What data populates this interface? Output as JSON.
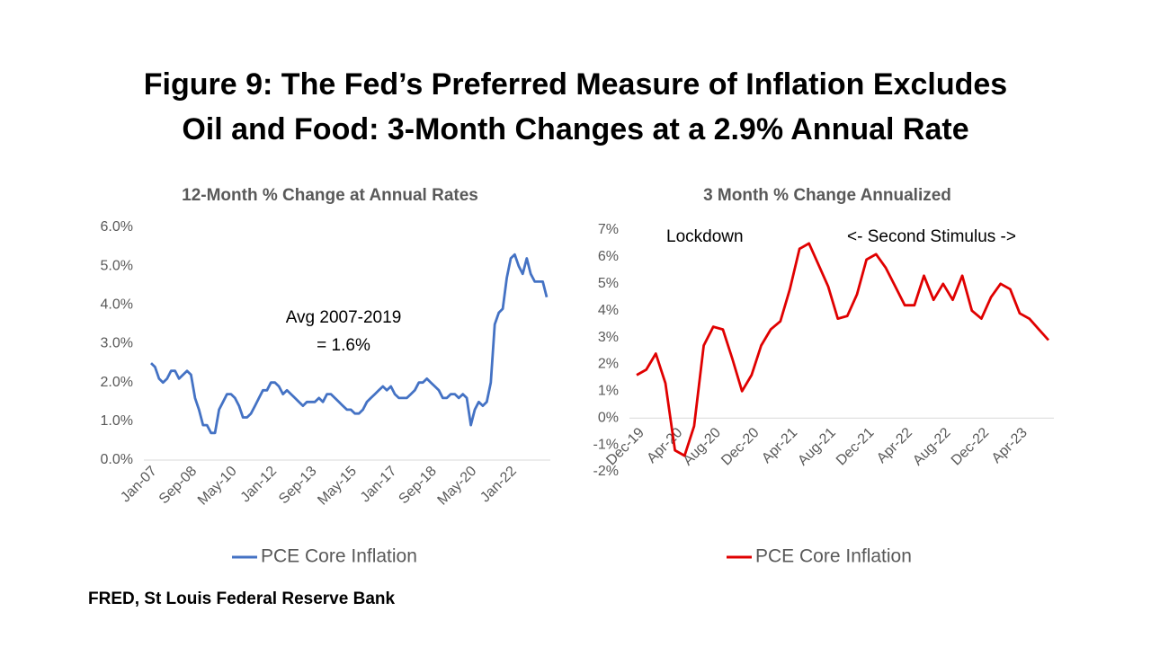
{
  "title": [
    "Figure 9: The Fed’s Preferred Measure of Inflation Excludes",
    "Oil and Food: 3-Month Changes at a 2.9% Annual Rate"
  ],
  "source": "FRED, St Louis  Federal Reserve Bank",
  "chart_data": [
    {
      "type": "line",
      "title": "12-Month % Change at Annual Rates",
      "categories": [
        "Jan-07",
        null,
        null,
        null,
        null,
        null,
        null,
        null,
        null,
        null,
        "Sep-08",
        null,
        null,
        null,
        null,
        null,
        null,
        null,
        null,
        null,
        "May-10",
        null,
        null,
        null,
        null,
        null,
        null,
        null,
        null,
        null,
        "Jan-12",
        null,
        null,
        null,
        null,
        null,
        null,
        null,
        null,
        null,
        "Sep-13",
        null,
        null,
        null,
        null,
        null,
        null,
        null,
        null,
        null,
        "May-15",
        null,
        null,
        null,
        null,
        null,
        null,
        null,
        null,
        null,
        "Jan-17",
        null,
        null,
        null,
        null,
        null,
        null,
        null,
        null,
        null,
        "Sep-18",
        null,
        null,
        null,
        null,
        null,
        null,
        null,
        null,
        null,
        "May-20",
        null,
        null,
        null,
        null,
        null,
        null,
        null,
        null,
        null,
        "Jan-22",
        null,
        null,
        null,
        null,
        null,
        null,
        null,
        null,
        null
      ],
      "series": [
        {
          "name": "PCE Core Inflation",
          "color": "#4472c4",
          "values": [
            2.5,
            2.4,
            2.1,
            2.0,
            2.1,
            2.3,
            2.3,
            2.1,
            2.2,
            2.3,
            2.2,
            1.6,
            1.3,
            0.9,
            0.9,
            0.7,
            0.7,
            1.3,
            1.5,
            1.7,
            1.7,
            1.6,
            1.4,
            1.1,
            1.1,
            1.2,
            1.4,
            1.6,
            1.8,
            1.8,
            2.0,
            2.0,
            1.9,
            1.7,
            1.8,
            1.7,
            1.6,
            1.5,
            1.4,
            1.5,
            1.5,
            1.5,
            1.6,
            1.5,
            1.7,
            1.7,
            1.6,
            1.5,
            1.4,
            1.3,
            1.3,
            1.2,
            1.2,
            1.3,
            1.5,
            1.6,
            1.7,
            1.8,
            1.9,
            1.8,
            1.9,
            1.7,
            1.6,
            1.6,
            1.6,
            1.7,
            1.8,
            2.0,
            2.0,
            2.1,
            2.0,
            1.9,
            1.8,
            1.6,
            1.6,
            1.7,
            1.7,
            1.6,
            1.7,
            1.6,
            0.9,
            1.3,
            1.5,
            1.4,
            1.5,
            2.0,
            3.5,
            3.8,
            3.9,
            4.7,
            5.2,
            5.3,
            5.0,
            4.8,
            5.2,
            4.8,
            4.6,
            4.6,
            4.6,
            4.2
          ]
        }
      ],
      "ylim": [
        0,
        6
      ],
      "yticks": [
        {
          "value": 0,
          "label": "0.0%"
        },
        {
          "value": 1,
          "label": "1.0%"
        },
        {
          "value": 2,
          "label": "2.0%"
        },
        {
          "value": 3,
          "label": "3.0%"
        },
        {
          "value": 4,
          "label": "4.0%"
        },
        {
          "value": 5,
          "label": "5.0%"
        },
        {
          "value": 6,
          "label": "6.0%"
        }
      ],
      "annotations": [
        "Avg 2007-2019",
        "= 1.6%"
      ]
    },
    {
      "type": "line",
      "title": "3 Month % Change Annualized",
      "categories": [
        "Dec-19",
        null,
        null,
        null,
        "Apr-20",
        null,
        null,
        null,
        "Aug-20",
        null,
        null,
        null,
        "Dec-20",
        null,
        null,
        null,
        "Apr-21",
        null,
        null,
        null,
        "Aug-21",
        null,
        null,
        null,
        "Dec-21",
        null,
        null,
        null,
        "Apr-22",
        null,
        null,
        null,
        "Aug-22",
        null,
        null,
        null,
        "Dec-22",
        null,
        null,
        null,
        "Apr-23",
        null,
        null,
        null
      ],
      "series": [
        {
          "name": "PCE Core Inflation",
          "color": "#e00000",
          "values": [
            1.6,
            1.8,
            2.4,
            1.3,
            -1.2,
            -1.4,
            -0.3,
            2.7,
            3.4,
            3.3,
            2.2,
            1.0,
            1.6,
            2.7,
            3.3,
            3.6,
            4.8,
            6.3,
            6.5,
            5.7,
            4.9,
            3.7,
            3.8,
            4.6,
            5.9,
            6.1,
            5.6,
            4.9,
            4.2,
            4.2,
            5.3,
            4.4,
            5.0,
            4.4,
            5.3,
            4.0,
            3.7,
            4.5,
            5.0,
            4.8,
            3.9,
            3.7,
            3.3,
            2.9
          ]
        }
      ],
      "ylim": [
        -2,
        7
      ],
      "yticks": [
        {
          "value": -2,
          "label": "-2%"
        },
        {
          "value": -1,
          "label": "-1%"
        },
        {
          "value": 0,
          "label": "0%"
        },
        {
          "value": 1,
          "label": "1%"
        },
        {
          "value": 2,
          "label": "2%"
        },
        {
          "value": 3,
          "label": "3%"
        },
        {
          "value": 4,
          "label": "4%"
        },
        {
          "value": 5,
          "label": "5%"
        },
        {
          "value": 6,
          "label": "6%"
        },
        {
          "value": 7,
          "label": "7%"
        }
      ],
      "annotations": [
        "Lockdown",
        "<- Second Stimulus ->"
      ]
    }
  ]
}
